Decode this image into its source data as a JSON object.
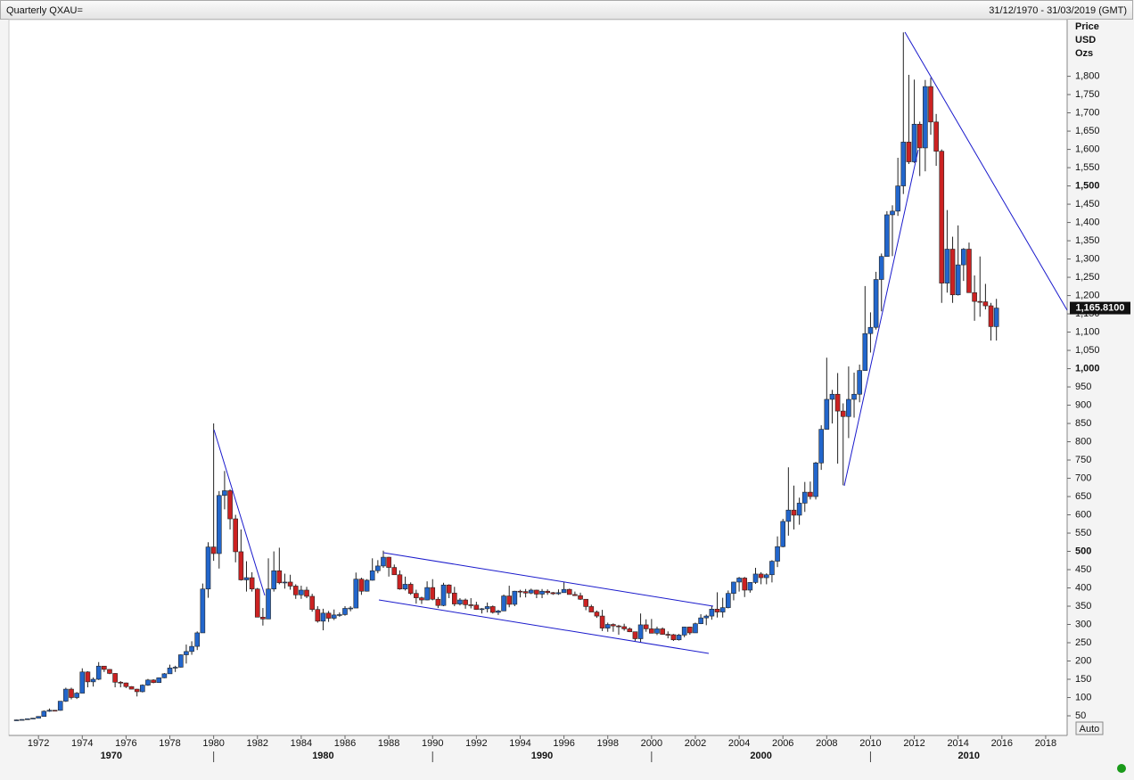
{
  "chart_data": {
    "type": "candlestick",
    "title": "Quarterly QXAU=",
    "date_range": "31/12/1970 - 31/03/2019 (GMT)",
    "y_label": [
      "Price",
      "USD",
      "Ozs"
    ],
    "up_color": "#2266cc",
    "down_color": "#cc2222",
    "xlim": [
      1970.65,
      2018.98
    ],
    "ylim": [
      0,
      1960
    ],
    "xticks": [
      1972,
      1974,
      1976,
      1978,
      1980,
      1982,
      1984,
      1986,
      1988,
      1990,
      1992,
      1994,
      1996,
      1998,
      2000,
      2002,
      2004,
      2006,
      2008,
      2010,
      2012,
      2014,
      2016,
      2018
    ],
    "decade_ticks": [
      1980,
      1990,
      2000,
      2010
    ],
    "decade_labels": [
      "1970",
      "1980",
      "1990",
      "2000",
      "2010"
    ],
    "yticks": [
      50,
      100,
      150,
      200,
      250,
      300,
      350,
      400,
      450,
      500,
      550,
      600,
      650,
      700,
      750,
      800,
      850,
      900,
      950,
      {
        "value": 1000,
        "label": "1,000"
      },
      {
        "value": 1050,
        "label": "1,050"
      },
      {
        "value": 1100,
        "label": "1,100"
      },
      {
        "value": 1150,
        "label": "1,150"
      },
      {
        "value": 1200,
        "label": "1,200"
      },
      {
        "value": 1250,
        "label": "1,250"
      },
      {
        "value": 1300,
        "label": "1,300"
      },
      {
        "value": 1350,
        "label": "1,350"
      },
      {
        "value": 1400,
        "label": "1,400"
      },
      {
        "value": 1450,
        "label": "1,450"
      },
      {
        "value": 1500,
        "label": "1,500"
      },
      {
        "value": 1550,
        "label": "1,550"
      },
      {
        "value": 1600,
        "label": "1,600"
      },
      {
        "value": 1650,
        "label": "1,650"
      },
      {
        "value": 1700,
        "label": "1,700"
      },
      {
        "value": 1750,
        "label": "1,750"
      },
      {
        "value": 1800,
        "label": "1,800"
      }
    ],
    "last_price": {
      "value": 1165.81,
      "label": "1,165.8100"
    },
    "scale_button": "Auto",
    "x": [
      1971,
      1971.25,
      1971.5,
      1971.75,
      1972,
      1972.25,
      1972.5,
      1972.75,
      1973,
      1973.25,
      1973.5,
      1973.75,
      1974,
      1974.25,
      1974.5,
      1974.75,
      1975,
      1975.25,
      1975.5,
      1975.75,
      1976,
      1976.25,
      1976.5,
      1976.75,
      1977,
      1977.25,
      1977.5,
      1977.75,
      1978,
      1978.25,
      1978.5,
      1978.75,
      1979,
      1979.25,
      1979.5,
      1979.75,
      1980,
      1980.25,
      1980.5,
      1980.75,
      1981,
      1981.25,
      1981.5,
      1981.75,
      1982,
      1982.25,
      1982.5,
      1982.75,
      1983,
      1983.25,
      1983.5,
      1983.75,
      1984,
      1984.25,
      1984.5,
      1984.75,
      1985,
      1985.25,
      1985.5,
      1985.75,
      1986,
      1986.25,
      1986.5,
      1986.75,
      1987,
      1987.25,
      1987.5,
      1987.75,
      1988,
      1988.25,
      1988.5,
      1988.75,
      1989,
      1989.25,
      1989.5,
      1989.75,
      1990,
      1990.25,
      1990.5,
      1990.75,
      1991,
      1991.25,
      1991.5,
      1991.75,
      1992,
      1992.25,
      1992.5,
      1992.75,
      1993,
      1993.25,
      1993.5,
      1993.75,
      1994,
      1994.25,
      1994.5,
      1994.75,
      1995,
      1995.25,
      1995.5,
      1995.75,
      1996,
      1996.25,
      1996.5,
      1996.75,
      1997,
      1997.25,
      1997.5,
      1997.75,
      1998,
      1998.25,
      1998.5,
      1998.75,
      1999,
      1999.25,
      1999.5,
      1999.75,
      2000,
      2000.25,
      2000.5,
      2000.75,
      2001,
      2001.25,
      2001.5,
      2001.75,
      2002,
      2002.25,
      2002.5,
      2002.75,
      2003,
      2003.25,
      2003.5,
      2003.75,
      2004,
      2004.25,
      2004.5,
      2004.75,
      2005,
      2005.25,
      2005.5,
      2005.75,
      2006,
      2006.25,
      2006.5,
      2006.75,
      2007,
      2007.25,
      2007.5,
      2007.75,
      2008,
      2008.25,
      2008.5,
      2008.75,
      2009,
      2009.25,
      2009.5,
      2009.75,
      2010,
      2010.25,
      2010.5,
      2010.75,
      2011,
      2011.25,
      2011.5,
      2011.75,
      2012,
      2012.25,
      2012.5,
      2012.75,
      2013,
      2013.25,
      2013.5,
      2013.75,
      2014,
      2014.25,
      2014.5,
      2014.75,
      2015,
      2015.25,
      2015.5,
      2015.75
    ],
    "ohlc": [
      [
        37.4,
        39.5,
        37.3,
        38.9
      ],
      [
        38.9,
        40.8,
        38.1,
        40.1
      ],
      [
        40.1,
        42.8,
        39.8,
        42
      ],
      [
        42,
        44,
        41.5,
        43.6
      ],
      [
        43.6,
        49,
        43.5,
        48.3
      ],
      [
        48.3,
        65,
        48,
        62.5
      ],
      [
        62.5,
        70,
        61,
        65.2
      ],
      [
        65.2,
        66,
        63,
        64.9
      ],
      [
        64.9,
        90,
        64,
        90
      ],
      [
        90,
        127,
        88,
        123
      ],
      [
        123,
        127,
        95,
        100
      ],
      [
        100,
        115,
        96,
        112
      ],
      [
        112,
        180,
        112,
        170
      ],
      [
        170,
        172,
        128,
        143
      ],
      [
        143,
        155,
        130,
        150
      ],
      [
        150,
        197,
        148,
        186
      ],
      [
        186,
        186,
        170,
        177
      ],
      [
        177,
        178,
        164,
        166
      ],
      [
        166,
        167,
        128,
        142
      ],
      [
        142,
        145,
        128,
        140
      ],
      [
        140,
        141,
        126,
        130
      ],
      [
        130,
        131,
        123,
        123
      ],
      [
        123,
        124,
        103,
        116
      ],
      [
        116,
        136,
        114,
        134
      ],
      [
        134,
        151,
        132,
        148
      ],
      [
        148,
        150,
        139,
        141
      ],
      [
        141,
        155,
        140,
        154
      ],
      [
        154,
        167,
        153,
        165
      ],
      [
        165,
        190,
        165,
        181
      ],
      [
        181,
        187,
        170,
        183
      ],
      [
        183,
        218,
        182,
        217
      ],
      [
        217,
        245,
        193,
        226
      ],
      [
        226,
        254,
        217,
        240
      ],
      [
        240,
        281,
        230,
        277
      ],
      [
        277,
        412,
        277,
        397
      ],
      [
        397,
        525,
        373,
        512
      ],
      [
        512,
        850,
        474,
        494
      ],
      [
        494,
        665,
        453,
        653
      ],
      [
        653,
        720,
        615,
        666
      ],
      [
        666,
        670,
        560,
        589
      ],
      [
        589,
        600,
        470,
        499
      ],
      [
        499,
        560,
        420,
        422
      ],
      [
        422,
        473,
        390,
        428
      ],
      [
        428,
        443,
        390,
        397
      ],
      [
        397,
        400,
        320,
        320
      ],
      [
        320,
        345,
        297,
        315
      ],
      [
        315,
        481,
        315,
        397
      ],
      [
        397,
        500,
        390,
        447
      ],
      [
        447,
        510,
        410,
        414
      ],
      [
        414,
        439,
        398,
        416
      ],
      [
        416,
        436,
        395,
        405
      ],
      [
        405,
        410,
        370,
        381
      ],
      [
        381,
        406,
        370,
        394
      ],
      [
        394,
        403,
        372,
        377
      ],
      [
        377,
        384,
        335,
        341
      ],
      [
        341,
        350,
        305,
        309
      ],
      [
        309,
        343,
        284,
        331
      ],
      [
        331,
        337,
        307,
        317
      ],
      [
        317,
        341,
        312,
        326
      ],
      [
        326,
        333,
        321,
        327
      ],
      [
        327,
        350,
        324,
        344
      ],
      [
        344,
        350,
        336,
        345
      ],
      [
        345,
        442,
        345,
        424
      ],
      [
        424,
        428,
        381,
        391
      ],
      [
        391,
        424,
        390,
        421
      ],
      [
        421,
        481,
        420,
        447
      ],
      [
        447,
        476,
        440,
        460
      ],
      [
        460,
        502,
        455,
        484
      ],
      [
        484,
        485,
        431,
        456
      ],
      [
        456,
        464,
        436,
        436
      ],
      [
        436,
        448,
        395,
        397
      ],
      [
        397,
        431,
        393,
        410
      ],
      [
        410,
        415,
        381,
        385
      ],
      [
        385,
        395,
        357,
        373
      ],
      [
        373,
        376,
        356,
        367
      ],
      [
        367,
        418,
        366,
        401
      ],
      [
        401,
        424,
        366,
        369
      ],
      [
        369,
        375,
        345,
        352
      ],
      [
        352,
        414,
        350,
        408
      ],
      [
        408,
        410,
        372,
        386
      ],
      [
        386,
        403,
        350,
        356
      ],
      [
        356,
        372,
        352,
        367
      ],
      [
        367,
        371,
        343,
        354
      ],
      [
        354,
        372,
        344,
        353
      ],
      [
        353,
        362,
        340,
        341
      ],
      [
        341,
        345,
        330,
        343
      ],
      [
        343,
        360,
        333,
        349
      ],
      [
        349,
        352,
        330,
        333
      ],
      [
        333,
        340,
        326,
        337
      ],
      [
        337,
        382,
        337,
        378
      ],
      [
        378,
        406,
        347,
        355
      ],
      [
        355,
        392,
        350,
        391
      ],
      [
        391,
        395,
        374,
        390
      ],
      [
        390,
        397,
        374,
        386
      ],
      [
        386,
        398,
        383,
        394
      ],
      [
        394,
        395,
        372,
        383
      ],
      [
        383,
        397,
        372,
        391
      ],
      [
        391,
        396,
        381,
        387
      ],
      [
        387,
        389,
        381,
        384
      ],
      [
        384,
        396,
        381,
        387
      ],
      [
        387,
        416,
        387,
        396
      ],
      [
        396,
        398,
        383,
        382
      ],
      [
        382,
        390,
        378,
        379
      ],
      [
        379,
        387,
        367,
        369
      ],
      [
        369,
        369,
        339,
        349
      ],
      [
        349,
        354,
        338,
        334
      ],
      [
        334,
        338,
        318,
        323
      ],
      [
        323,
        340,
        282,
        290
      ],
      [
        290,
        305,
        280,
        300
      ],
      [
        300,
        303,
        280,
        296
      ],
      [
        296,
        299,
        272,
        294
      ],
      [
        294,
        302,
        283,
        288
      ],
      [
        288,
        292,
        279,
        280
      ],
      [
        280,
        280,
        255,
        261
      ],
      [
        261,
        330,
        252,
        299
      ],
      [
        299,
        314,
        280,
        288
      ],
      [
        288,
        315,
        276,
        276
      ],
      [
        276,
        294,
        271,
        288
      ],
      [
        288,
        292,
        272,
        273
      ],
      [
        273,
        281,
        262,
        272
      ],
      [
        272,
        274,
        255,
        258
      ],
      [
        258,
        274,
        256,
        271
      ],
      [
        271,
        294,
        265,
        293
      ],
      [
        293,
        294,
        272,
        277
      ],
      [
        277,
        305,
        277,
        302
      ],
      [
        302,
        328,
        301,
        318
      ],
      [
        318,
        327,
        298,
        323
      ],
      [
        323,
        351,
        313,
        342
      ],
      [
        342,
        388,
        319,
        334
      ],
      [
        334,
        373,
        319,
        346
      ],
      [
        346,
        393,
        344,
        385
      ],
      [
        385,
        417,
        366,
        416
      ],
      [
        416,
        430,
        390,
        427
      ],
      [
        427,
        430,
        375,
        394
      ],
      [
        394,
        416,
        387,
        415
      ],
      [
        415,
        455,
        411,
        438
      ],
      [
        438,
        443,
        410,
        428
      ],
      [
        428,
        440,
        410,
        436
      ],
      [
        436,
        476,
        415,
        473
      ],
      [
        473,
        541,
        457,
        513
      ],
      [
        513,
        589,
        511,
        582
      ],
      [
        582,
        730,
        543,
        613
      ],
      [
        613,
        680,
        560,
        599
      ],
      [
        599,
        647,
        573,
        632
      ],
      [
        632,
        690,
        608,
        662
      ],
      [
        662,
        691,
        642,
        650
      ],
      [
        650,
        745,
        642,
        742
      ],
      [
        742,
        845,
        723,
        834
      ],
      [
        834,
        1030,
        834,
        916
      ],
      [
        916,
        942,
        850,
        930
      ],
      [
        930,
        988,
        740,
        884
      ],
      [
        884,
        905,
        681,
        869
      ],
      [
        869,
        1006,
        810,
        916
      ],
      [
        916,
        989,
        866,
        930
      ],
      [
        930,
        1011,
        908,
        995
      ],
      [
        995,
        1226,
        994,
        1096
      ],
      [
        1096,
        1154,
        1044,
        1113
      ],
      [
        1113,
        1265,
        1107,
        1244
      ],
      [
        1244,
        1315,
        1157,
        1307
      ],
      [
        1307,
        1431,
        1307,
        1421
      ],
      [
        1421,
        1447,
        1308,
        1431
      ],
      [
        1431,
        1577,
        1418,
        1500
      ],
      [
        1500,
        1920,
        1478,
        1620
      ],
      [
        1620,
        1804,
        1560,
        1566
      ],
      [
        1566,
        1791,
        1563,
        1669
      ],
      [
        1669,
        1676,
        1527,
        1604
      ],
      [
        1604,
        1790,
        1540,
        1772
      ],
      [
        1772,
        1796,
        1640,
        1675
      ],
      [
        1675,
        1697,
        1555,
        1595
      ],
      [
        1595,
        1600,
        1180,
        1234
      ],
      [
        1234,
        1434,
        1208,
        1327
      ],
      [
        1327,
        1361,
        1180,
        1202
      ],
      [
        1202,
        1392,
        1200,
        1284
      ],
      [
        1284,
        1330,
        1240,
        1327
      ],
      [
        1327,
        1345,
        1208,
        1208
      ],
      [
        1208,
        1255,
        1131,
        1184
      ],
      [
        1184,
        1307,
        1142,
        1183
      ],
      [
        1183,
        1232,
        1162,
        1172
      ],
      [
        1172,
        1180,
        1077,
        1115
      ],
      [
        1115,
        1191,
        1077,
        1165.81
      ]
    ]
  }
}
